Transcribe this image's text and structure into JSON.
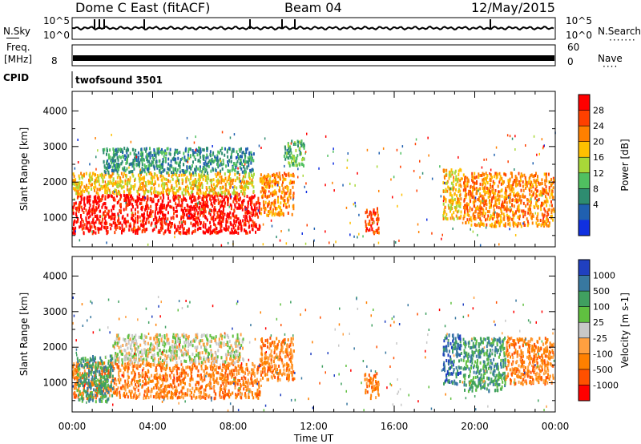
{
  "header": {
    "station": "Dome C East (fitACF)",
    "beam": "Beam 04",
    "date": "12/May/2015"
  },
  "panels": {
    "nsky_label": "N.Sky",
    "nsky_ticks": [
      "10^5",
      "10^0"
    ],
    "nsearch_label": "N.Search",
    "freq_label_1": "Freq.",
    "freq_label_2": "[MHz]",
    "freq_tick": "8",
    "nave_label": "Nave",
    "nave_ticks": [
      "60",
      "0"
    ],
    "cpid_label": "CPID",
    "cpid_value": "twofsound 3501"
  },
  "chart_data": [
    {
      "type": "heatmap",
      "name": "power",
      "ylabel": "Slant Range [km]",
      "yticks": [
        1000,
        2000,
        3000,
        4000
      ],
      "ylim": [
        180,
        4550
      ],
      "xlim": [
        0,
        24
      ],
      "colorbar": {
        "label": "Power [dB]",
        "ticks": [
          "28",
          "24",
          "20",
          "16",
          "12",
          "8",
          "4"
        ],
        "colors": [
          "#ff0000",
          "#ff4000",
          "#ff8000",
          "#ffc000",
          "#a8d838",
          "#50c060",
          "#2e8c70",
          "#2060b0",
          "#1030e0"
        ]
      },
      "regions": [
        {
          "t0": 0.0,
          "t1": 9.3,
          "r0": 600,
          "r1": 1700,
          "level": 0
        },
        {
          "t0": 0.0,
          "t1": 9.0,
          "r0": 1700,
          "r1": 2300,
          "level": 3
        },
        {
          "t0": 1.5,
          "t1": 9.0,
          "r0": 2300,
          "r1": 3000,
          "level": 6
        },
        {
          "t0": 9.3,
          "t1": 11.0,
          "r0": 1100,
          "r1": 2300,
          "level": 2
        },
        {
          "t0": 10.5,
          "t1": 11.5,
          "r0": 2500,
          "r1": 3200,
          "level": 5
        },
        {
          "t0": 14.5,
          "t1": 15.2,
          "r0": 600,
          "r1": 1300,
          "level": 1
        },
        {
          "t0": 18.4,
          "t1": 19.3,
          "r0": 1000,
          "r1": 2400,
          "level": 3
        },
        {
          "t0": 19.4,
          "t1": 23.9,
          "r0": 800,
          "r1": 2300,
          "level": 2
        }
      ]
    },
    {
      "type": "heatmap",
      "name": "velocity",
      "ylabel": "Slant Range [km]",
      "xlabel": "Time UT",
      "xticks": [
        "00:00",
        "04:00",
        "08:00",
        "12:00",
        "16:00",
        "20:00",
        "00:00"
      ],
      "yticks": [
        1000,
        2000,
        3000,
        4000
      ],
      "ylim": [
        180,
        4550
      ],
      "xlim": [
        0,
        24
      ],
      "colorbar": {
        "label": "Velocity [m s-1]",
        "ticks": [
          "1000",
          "500",
          "100",
          "25",
          "-25",
          "-100",
          "-500",
          "-1000"
        ],
        "colors": [
          "#2040c0",
          "#3878a0",
          "#40a060",
          "#60c040",
          "#c8c8c8",
          "#ffa040",
          "#ff8000",
          "#ff5000",
          "#ff0000"
        ]
      },
      "regions": [
        {
          "t0": 0.0,
          "t1": 9.3,
          "r0": 600,
          "r1": 1600,
          "level": 6
        },
        {
          "t0": 0.2,
          "t1": 2.0,
          "r0": 500,
          "r1": 1800,
          "level": 2
        },
        {
          "t0": 2.0,
          "t1": 8.5,
          "r0": 1600,
          "r1": 2400,
          "level": 4
        },
        {
          "t0": 9.3,
          "t1": 11.0,
          "r0": 1100,
          "r1": 2300,
          "level": 6
        },
        {
          "t0": 14.5,
          "t1": 15.2,
          "r0": 600,
          "r1": 1300,
          "level": 6
        },
        {
          "t0": 18.4,
          "t1": 19.3,
          "r0": 1000,
          "r1": 2400,
          "level": 1
        },
        {
          "t0": 19.4,
          "t1": 21.5,
          "r0": 800,
          "r1": 2300,
          "level": 2
        },
        {
          "t0": 21.5,
          "t1": 23.9,
          "r0": 1000,
          "r1": 2300,
          "level": 6
        }
      ]
    }
  ]
}
